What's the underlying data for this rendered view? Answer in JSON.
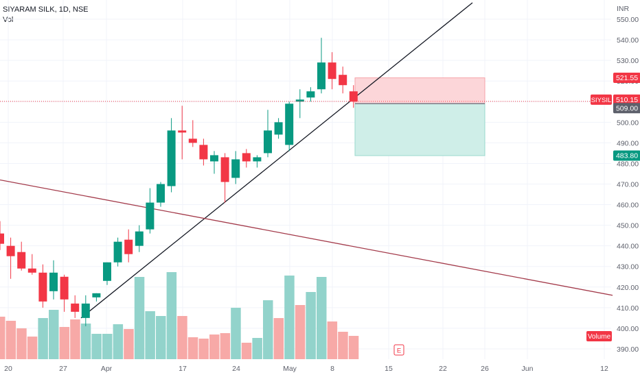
{
  "header": {
    "title": "SIYARAM SILK, 1D, NSE",
    "volume_label": "Vol"
  },
  "currency": "INR",
  "colors": {
    "up": "#089981",
    "down": "#f23645",
    "up_volume": "#92d3cb",
    "down_volume": "#f7a9a7",
    "trendline_up": "#131722",
    "trendline_down": "#a33a4a",
    "stop_zone": "#fcd6d9",
    "target_zone": "#cfeee8",
    "grid": "#f0f3fa",
    "axis_text": "#5d606b"
  },
  "chart_data": {
    "type": "candlestick",
    "symbol": "SIYSIL",
    "timeframe": "1D",
    "exchange": "NSE",
    "ylim": [
      385,
      556
    ],
    "y_ticks": [
      390,
      400,
      410,
      420,
      430,
      440,
      450,
      460,
      470,
      480,
      490,
      500,
      510,
      520,
      530,
      540,
      550
    ],
    "x_ticks": [
      "20",
      "27",
      "Apr",
      "17",
      "24",
      "May",
      "8",
      "15",
      "22",
      "26",
      "Jun",
      "12"
    ],
    "candles": [
      {
        "o": 446,
        "h": 452,
        "l": 438,
        "c": 441
      },
      {
        "o": 440,
        "h": 444,
        "l": 424,
        "c": 435
      },
      {
        "o": 437,
        "h": 442,
        "l": 428,
        "c": 429
      },
      {
        "o": 429,
        "h": 436,
        "l": 426,
        "c": 427
      },
      {
        "o": 427,
        "h": 431,
        "l": 410,
        "c": 413
      },
      {
        "o": 418,
        "h": 433,
        "l": 414,
        "c": 427
      },
      {
        "o": 425,
        "h": 426,
        "l": 408,
        "c": 414
      },
      {
        "o": 412,
        "h": 416,
        "l": 405,
        "c": 408
      },
      {
        "o": 405,
        "h": 416,
        "l": 401,
        "c": 412
      },
      {
        "o": 415,
        "h": 417,
        "l": 413,
        "c": 417
      },
      {
        "o": 423,
        "h": 432,
        "l": 421,
        "c": 432
      },
      {
        "o": 432,
        "h": 444,
        "l": 430,
        "c": 442
      },
      {
        "o": 443,
        "h": 448,
        "l": 432,
        "c": 436
      },
      {
        "o": 440,
        "h": 450,
        "l": 437,
        "c": 447
      },
      {
        "o": 448,
        "h": 468,
        "l": 446,
        "c": 461
      },
      {
        "o": 461,
        "h": 471,
        "l": 459,
        "c": 470
      },
      {
        "o": 469,
        "h": 502,
        "l": 466,
        "c": 496
      },
      {
        "o": 496,
        "h": 508,
        "l": 482,
        "c": 495
      },
      {
        "o": 492,
        "h": 501,
        "l": 488,
        "c": 490
      },
      {
        "o": 489,
        "h": 492,
        "l": 479,
        "c": 482
      },
      {
        "o": 481,
        "h": 486,
        "l": 475,
        "c": 484
      },
      {
        "o": 483,
        "h": 485,
        "l": 461,
        "c": 471
      },
      {
        "o": 473,
        "h": 486,
        "l": 470,
        "c": 482
      },
      {
        "o": 485,
        "h": 487,
        "l": 478,
        "c": 481
      },
      {
        "o": 481,
        "h": 484,
        "l": 478,
        "c": 483
      },
      {
        "o": 485,
        "h": 506,
        "l": 483,
        "c": 496
      },
      {
        "o": 494,
        "h": 502,
        "l": 492,
        "c": 500
      },
      {
        "o": 489,
        "h": 510,
        "l": 486,
        "c": 509
      },
      {
        "o": 510,
        "h": 516,
        "l": 502,
        "c": 511
      },
      {
        "o": 512,
        "h": 517,
        "l": 510,
        "c": 515
      },
      {
        "o": 516,
        "h": 541,
        "l": 514,
        "c": 529
      },
      {
        "o": 529,
        "h": 534,
        "l": 516,
        "c": 521
      },
      {
        "o": 523,
        "h": 527,
        "l": 514,
        "c": 518
      },
      {
        "o": 515,
        "h": 518,
        "l": 507,
        "c": 510
      }
    ],
    "volume": [
      {
        "v": 62,
        "up": false
      },
      {
        "v": 56,
        "up": false
      },
      {
        "v": 45,
        "up": false
      },
      {
        "v": 33,
        "up": false
      },
      {
        "v": 60,
        "up": true
      },
      {
        "v": 72,
        "up": true
      },
      {
        "v": 47,
        "up": false
      },
      {
        "v": 58,
        "up": false
      },
      {
        "v": 52,
        "up": true
      },
      {
        "v": 37,
        "up": true
      },
      {
        "v": 37,
        "up": true
      },
      {
        "v": 51,
        "up": true
      },
      {
        "v": 44,
        "up": false
      },
      {
        "v": 120,
        "up": true
      },
      {
        "v": 70,
        "up": true
      },
      {
        "v": 63,
        "up": true
      },
      {
        "v": 127,
        "up": true
      },
      {
        "v": 63,
        "up": false
      },
      {
        "v": 32,
        "up": false
      },
      {
        "v": 30,
        "up": false
      },
      {
        "v": 36,
        "up": false
      },
      {
        "v": 38,
        "up": false
      },
      {
        "v": 75,
        "up": true
      },
      {
        "v": 24,
        "up": false
      },
      {
        "v": 31,
        "up": true
      },
      {
        "v": 86,
        "up": true
      },
      {
        "v": 60,
        "up": false
      },
      {
        "v": 122,
        "up": true
      },
      {
        "v": 79,
        "up": false
      },
      {
        "v": 98,
        "up": true
      },
      {
        "v": 120,
        "up": true
      },
      {
        "v": 55,
        "up": false
      },
      {
        "v": 40,
        "up": false
      },
      {
        "v": 34,
        "up": false
      }
    ],
    "price_labels": [
      {
        "value": 521.55,
        "text": "521.55",
        "color": "#f23645"
      },
      {
        "value": 510.15,
        "text": "510.15",
        "tag": "SIYSIL",
        "color": "#f23645"
      },
      {
        "value": 509.0,
        "text": "509.00",
        "color": "#5d606b"
      },
      {
        "value": 483.8,
        "text": "483.80",
        "color": "#089981"
      }
    ],
    "position": {
      "entry": 509.0,
      "stop": 521.55,
      "target": 483.8
    },
    "indicator_labels": {
      "volume_badge": "Volume",
      "event_marker": "E"
    }
  }
}
